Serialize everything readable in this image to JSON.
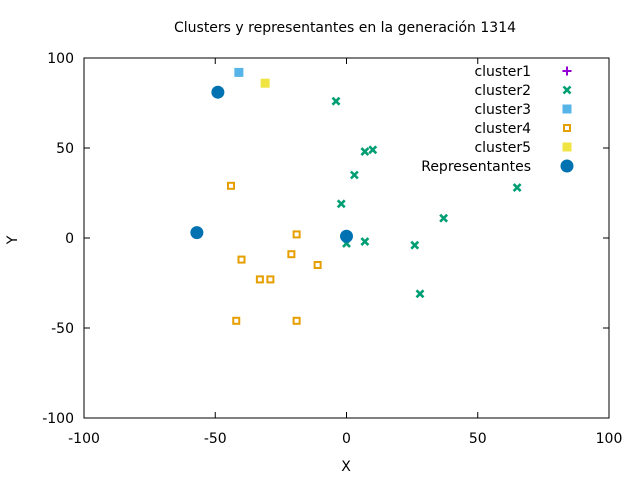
{
  "chart_data": {
    "type": "scatter",
    "title": "Clusters y representantes en la generación 1314",
    "xlabel": "X",
    "ylabel": "Y",
    "xlim": [
      -100,
      100
    ],
    "ylim": [
      -100,
      100
    ],
    "xticks": [
      "-100",
      "-50",
      "0",
      "50",
      "100"
    ],
    "yticks": [
      "100",
      "50",
      "0",
      "-50",
      "-100"
    ],
    "grid": false,
    "legend_position": "top-right",
    "series": [
      {
        "name": "cluster1",
        "marker": "plus",
        "color": "#9400d3",
        "points": []
      },
      {
        "name": "cluster2",
        "marker": "x",
        "color": "#009e73",
        "points": [
          [
            -4,
            76
          ],
          [
            7,
            48
          ],
          [
            10,
            49
          ],
          [
            3,
            35
          ],
          [
            -2,
            19
          ],
          [
            65,
            28
          ],
          [
            37,
            11
          ],
          [
            7,
            -2
          ],
          [
            0,
            -3
          ],
          [
            26,
            -4
          ],
          [
            28,
            -31
          ]
        ]
      },
      {
        "name": "cluster3",
        "marker": "filled-square",
        "color": "#56b4e9",
        "points": [
          [
            -41,
            92
          ]
        ]
      },
      {
        "name": "cluster4",
        "marker": "open-square",
        "color": "#e69f00",
        "points": [
          [
            -44,
            29
          ],
          [
            -19,
            2
          ],
          [
            -21,
            -9
          ],
          [
            -40,
            -12
          ],
          [
            -11,
            -15
          ],
          [
            -33,
            -23
          ],
          [
            -29,
            -23
          ],
          [
            -42,
            -46
          ],
          [
            -19,
            -46
          ]
        ]
      },
      {
        "name": "cluster5",
        "marker": "filled-square",
        "color": "#f0e442",
        "points": [
          [
            -31,
            86
          ]
        ]
      },
      {
        "name": "Representantes",
        "marker": "filled-circle",
        "color": "#0072b2",
        "points": [
          [
            -49,
            81
          ],
          [
            -57,
            3
          ],
          [
            0,
            1
          ]
        ]
      }
    ]
  }
}
